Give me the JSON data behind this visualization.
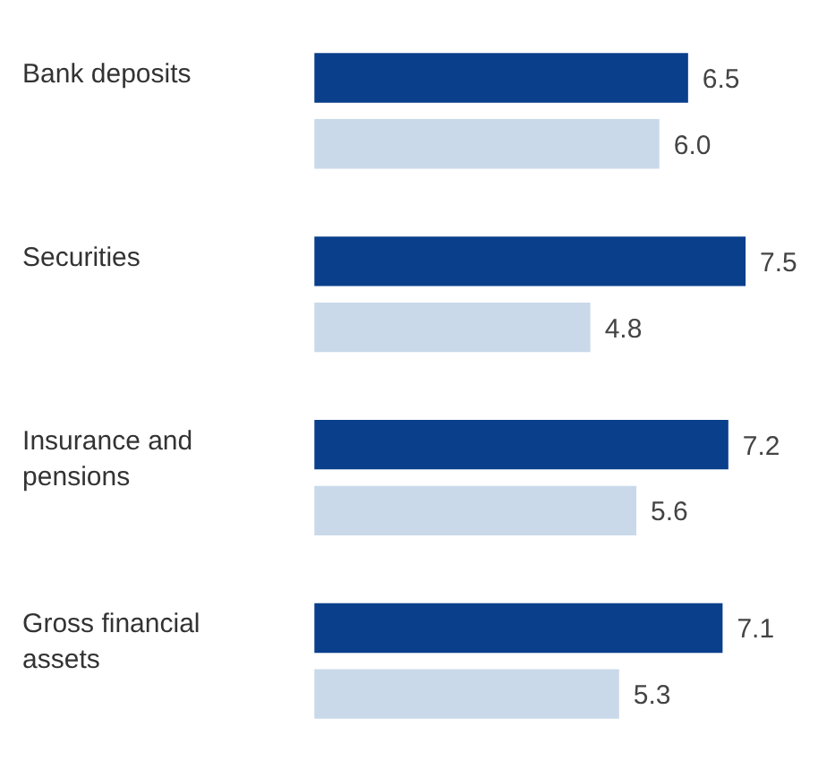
{
  "chart_data": {
    "type": "bar",
    "orientation": "horizontal",
    "categories": [
      "Bank deposits",
      "Securities",
      "Insurance and pensions",
      "Gross financial assets"
    ],
    "series": [
      {
        "color": "#0a3f8c",
        "values": [
          6.5,
          7.5,
          7.2,
          7.1
        ],
        "value_labels": [
          "6.5",
          "7.5",
          "7.2",
          "7.1"
        ]
      },
      {
        "color": "#c9d9ea",
        "values": [
          6.0,
          4.8,
          5.6,
          5.3
        ],
        "value_labels": [
          "6.0",
          "4.8",
          "5.6",
          "5.3"
        ]
      }
    ]
  }
}
